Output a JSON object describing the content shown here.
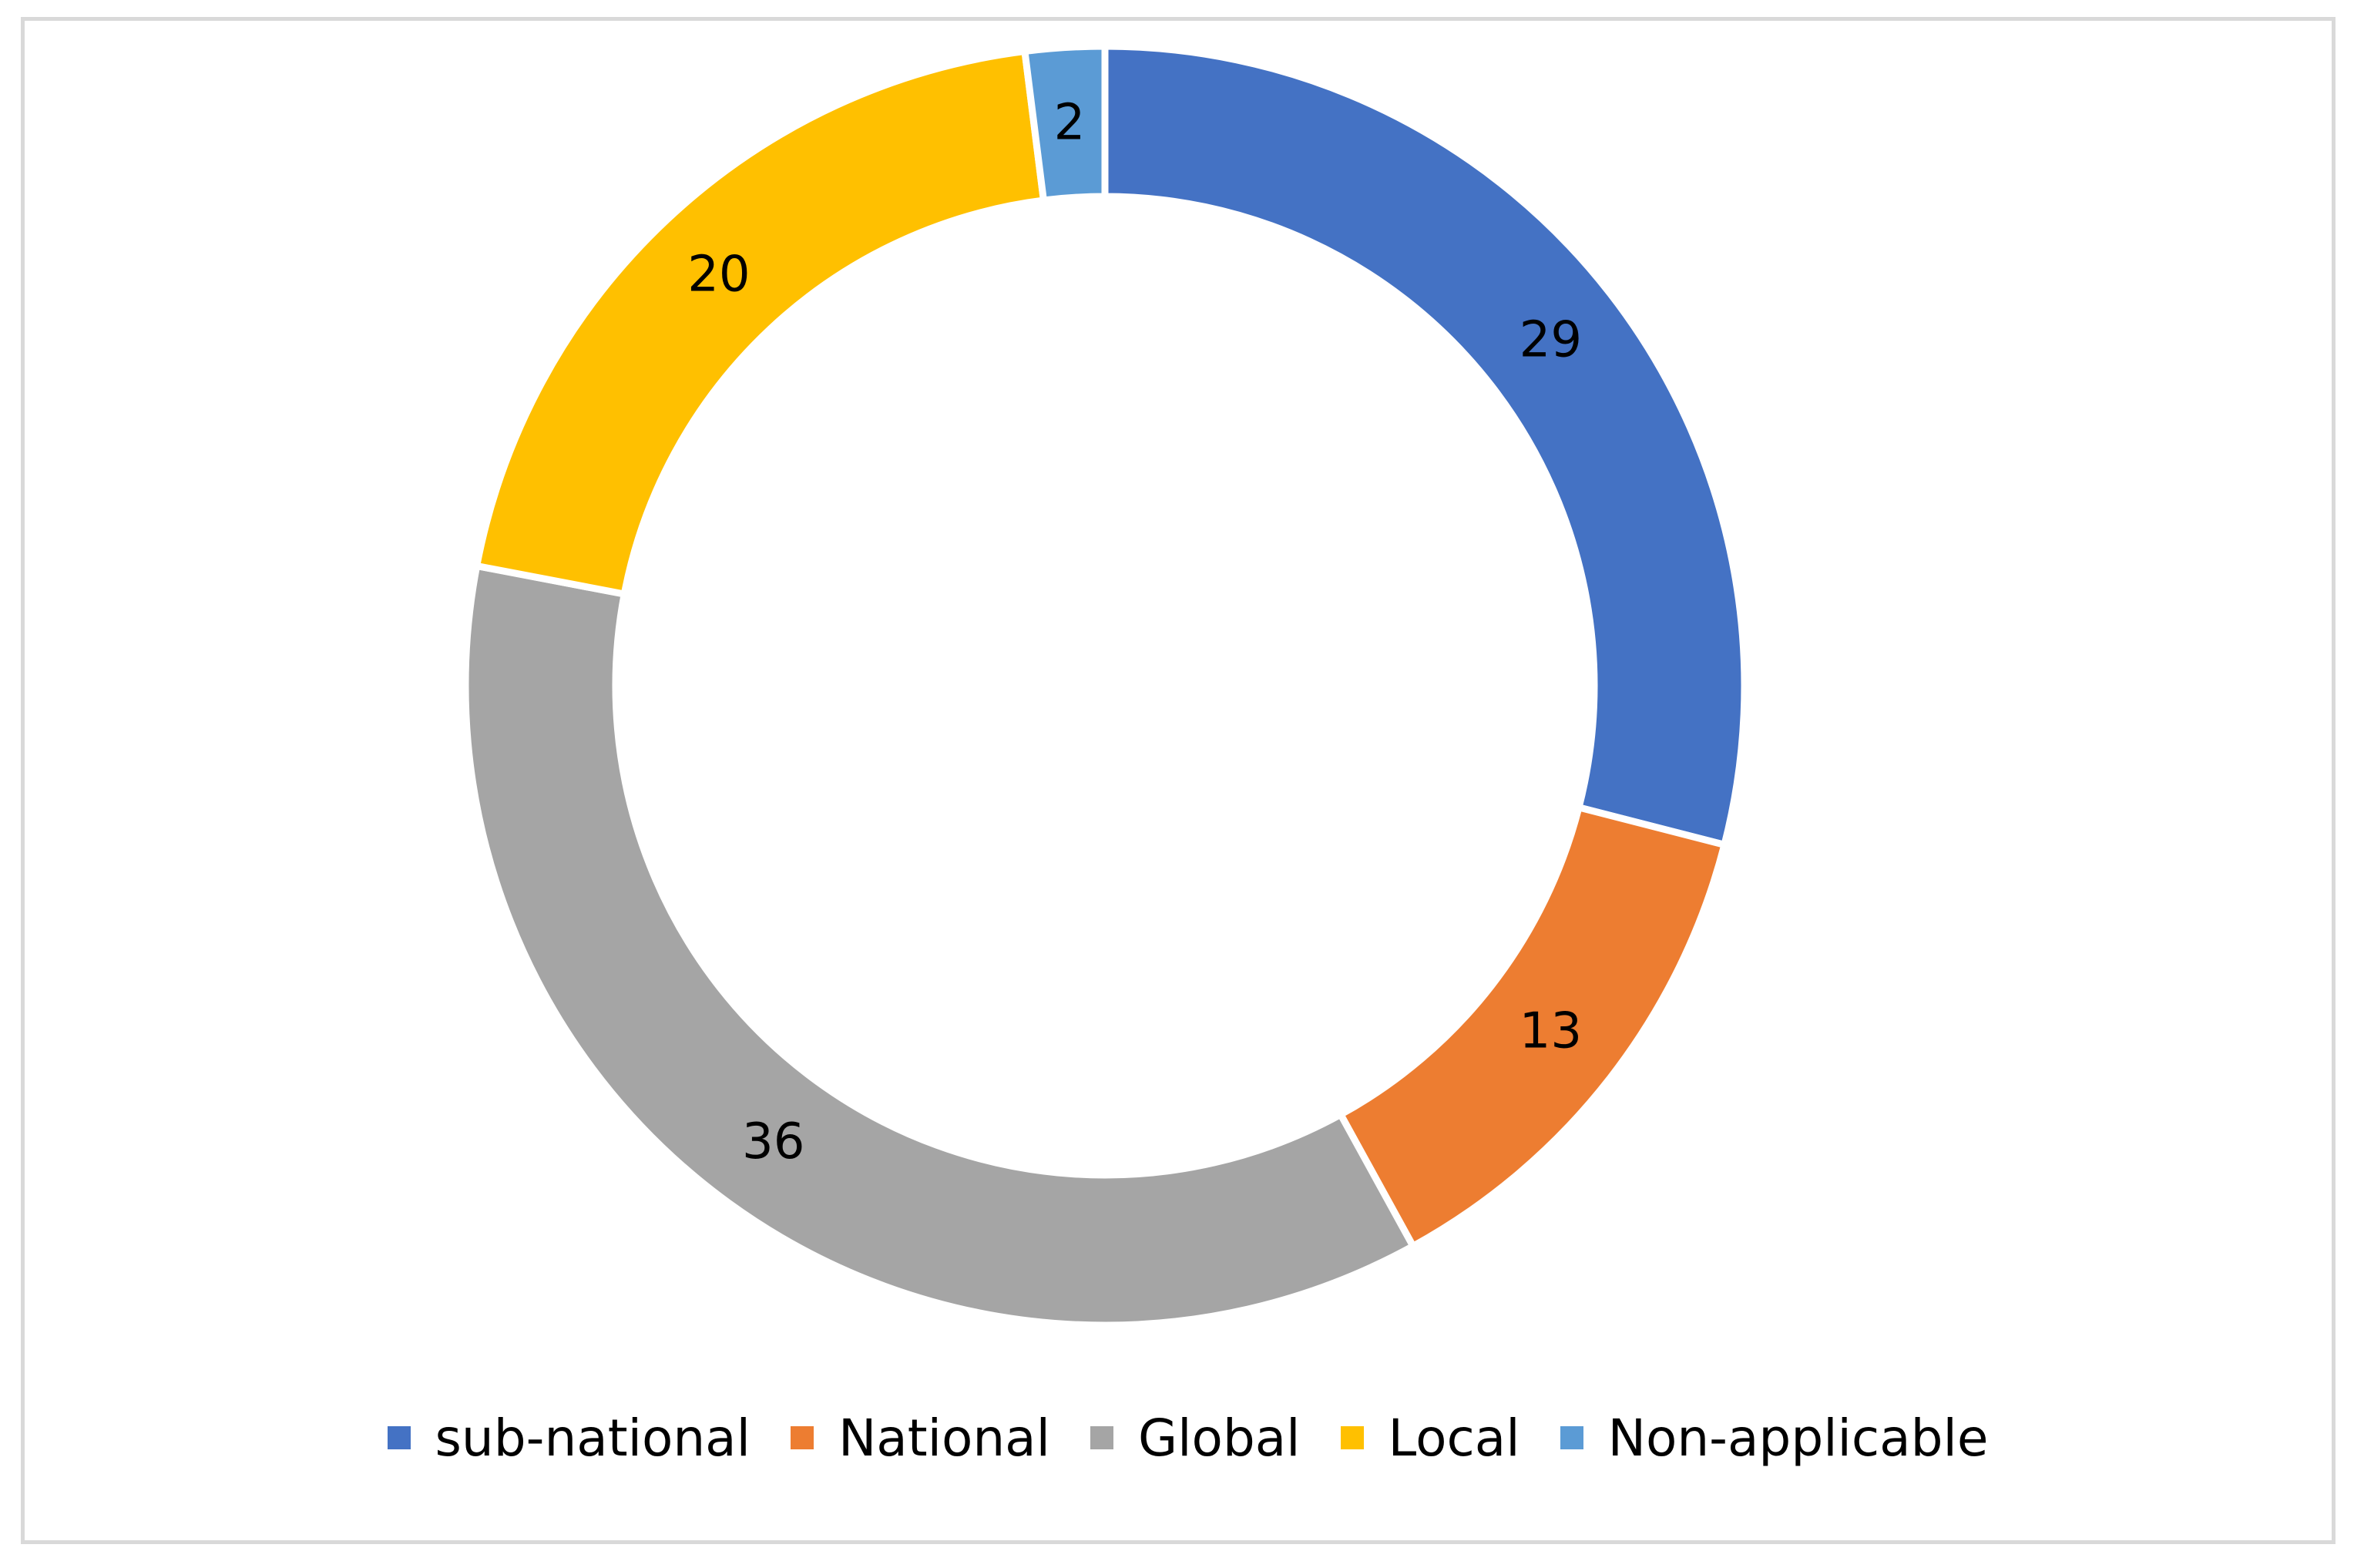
{
  "chart_data": {
    "type": "pie",
    "subtype": "donut",
    "title": "",
    "legend_position": "bottom",
    "slices": [
      {
        "label": "sub-national",
        "value": 29,
        "color": "#4472C4"
      },
      {
        "label": "National",
        "value": 13,
        "color": "#ED7D31"
      },
      {
        "label": "Global",
        "value": 36,
        "color": "#A5A5A5"
      },
      {
        "label": "Local",
        "value": 20,
        "color": "#FFC000"
      },
      {
        "label": "Non-applicable",
        "value": 2,
        "color": "#5B9BD5"
      }
    ]
  }
}
